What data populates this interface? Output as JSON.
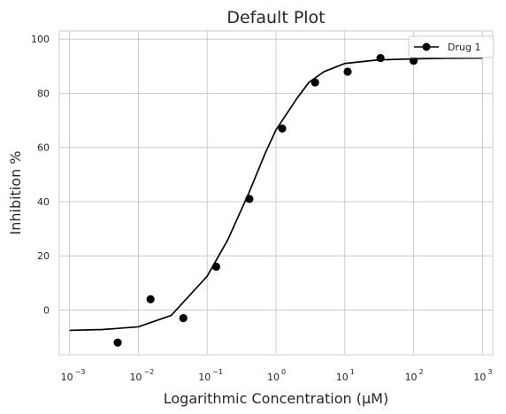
{
  "chart_data": {
    "type": "scatter",
    "title": "Default Plot",
    "xlabel": "Logarithmic Concentration (μM)",
    "ylabel": "Inhibition %",
    "x_scale": "log",
    "xlim": [
      0.000708,
      1412
    ],
    "ylim": [
      -16.5,
      103
    ],
    "x_ticks": [
      {
        "value": 0.001,
        "base": "10",
        "exp": "−3"
      },
      {
        "value": 0.01,
        "base": "10",
        "exp": "−2"
      },
      {
        "value": 0.1,
        "base": "10",
        "exp": "−1"
      },
      {
        "value": 1,
        "base": "10",
        "exp": "0"
      },
      {
        "value": 10,
        "base": "10",
        "exp": "1"
      },
      {
        "value": 100,
        "base": "10",
        "exp": "2"
      },
      {
        "value": 1000,
        "base": "10",
        "exp": "3"
      }
    ],
    "y_ticks": [
      {
        "value": 0,
        "label": "0"
      },
      {
        "value": 20,
        "label": "20"
      },
      {
        "value": 40,
        "label": "40"
      },
      {
        "value": 60,
        "label": "60"
      },
      {
        "value": 80,
        "label": "80"
      },
      {
        "value": 100,
        "label": "100"
      }
    ],
    "grid": true,
    "legend_position": "top-right",
    "series": [
      {
        "name": "Drug 1",
        "color": "#000000",
        "marker": "circle",
        "x": [
          0.005,
          0.015,
          0.045,
          0.135,
          0.41,
          1.23,
          3.7,
          11,
          33,
          100
        ],
        "y": [
          -12,
          4,
          -3,
          16,
          41,
          67,
          84,
          88,
          93,
          92
        ]
      }
    ],
    "fit_curve": {
      "color": "#000000",
      "x": [
        0.001,
        0.003,
        0.01,
        0.03,
        0.1,
        0.2,
        0.4,
        0.7,
        1,
        2,
        3,
        5,
        10,
        30,
        100,
        300,
        1000
      ],
      "y": [
        -7.5,
        -7.2,
        -6.2,
        -2,
        12.5,
        26,
        43,
        58,
        66.5,
        78,
        84,
        88,
        91,
        92.3,
        92.7,
        92.9,
        93
      ]
    }
  }
}
